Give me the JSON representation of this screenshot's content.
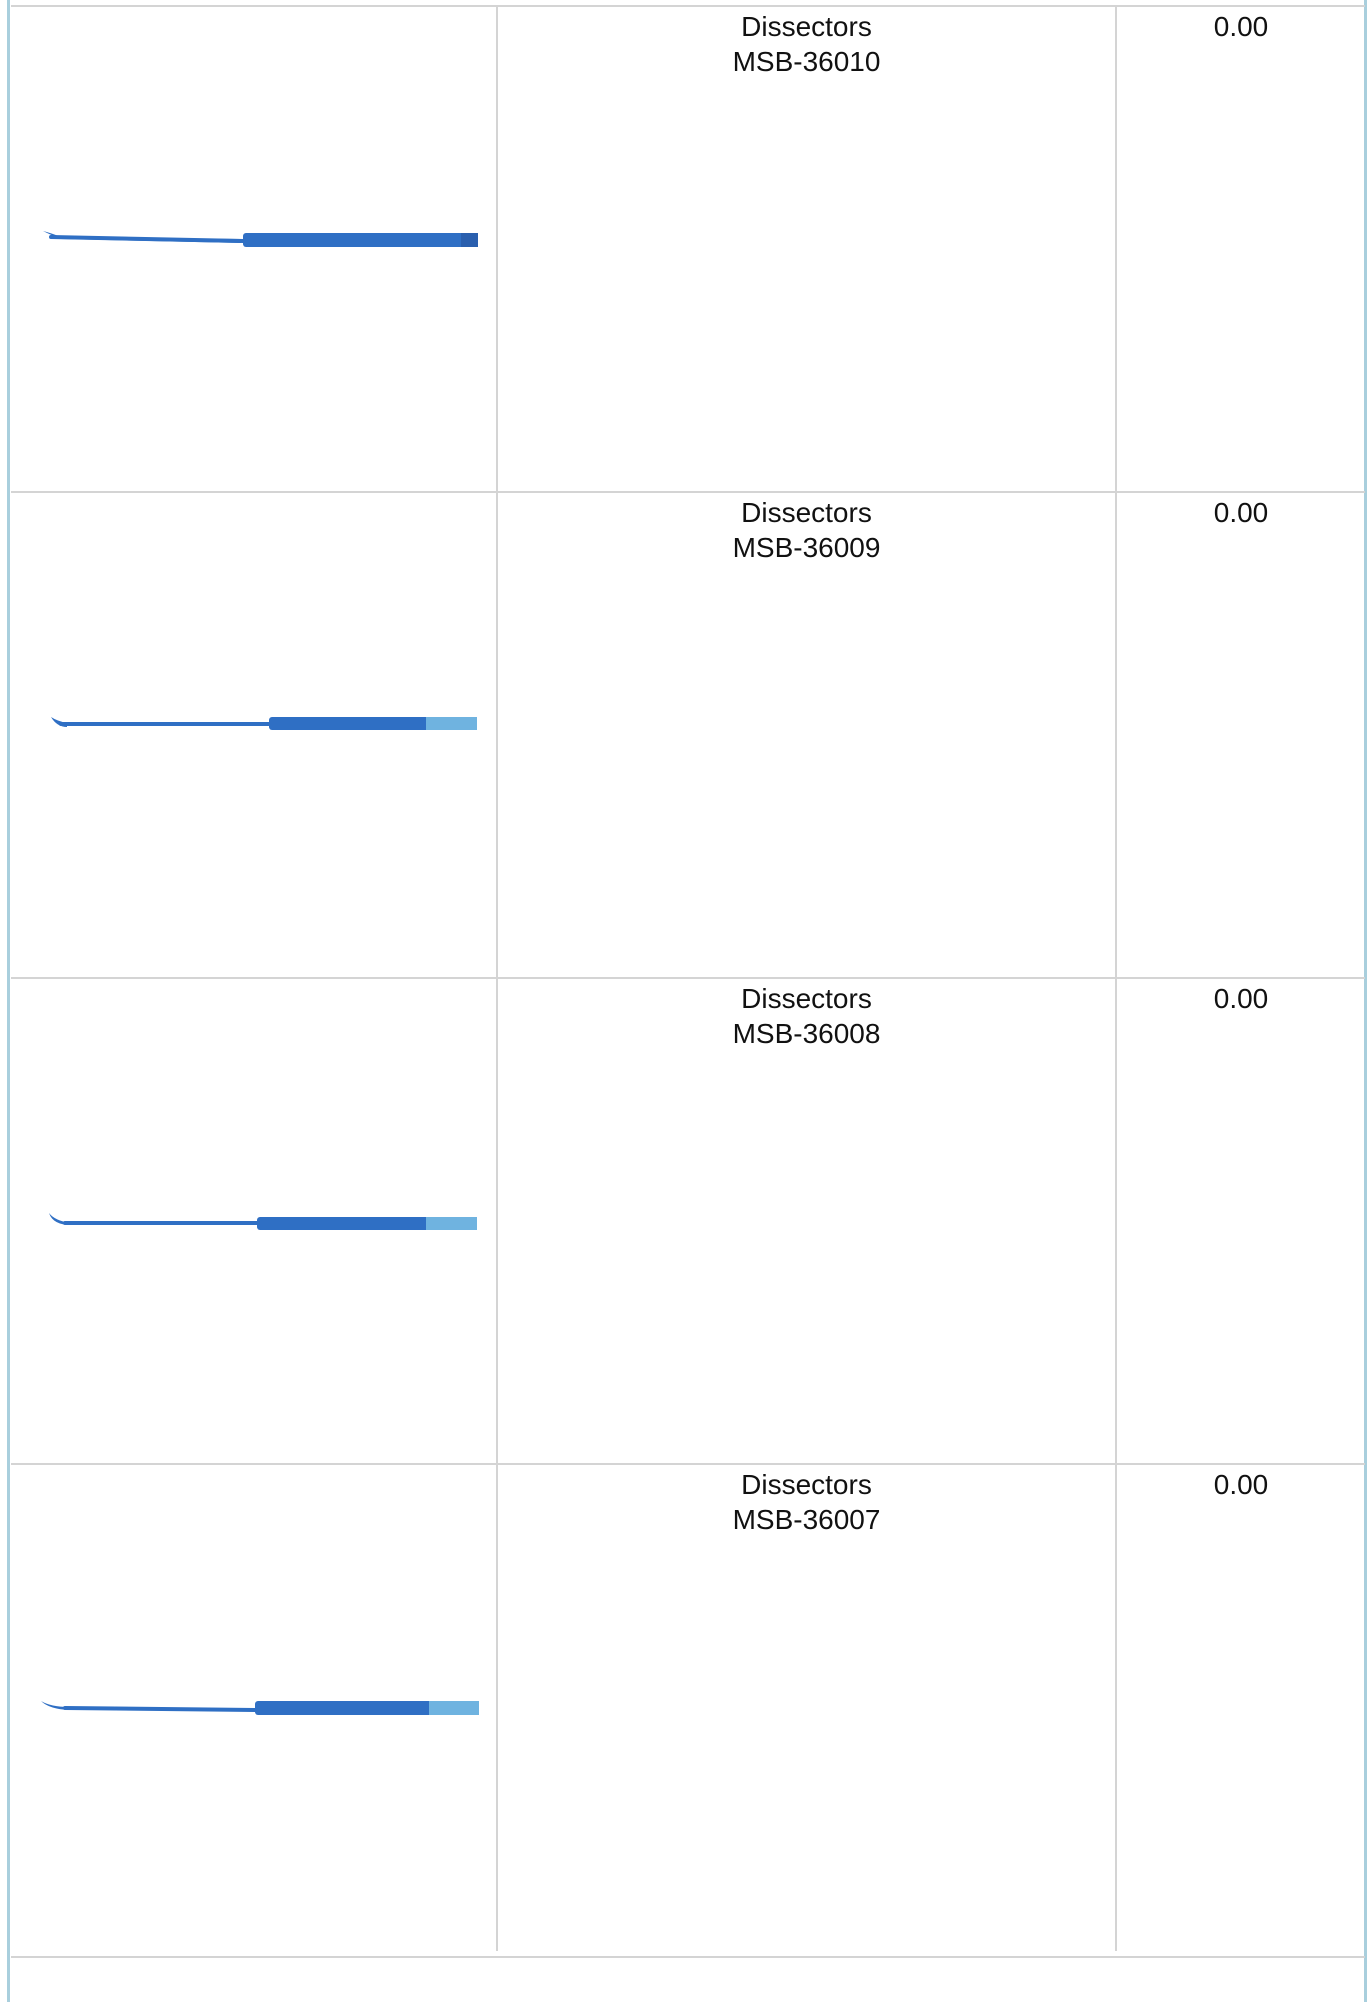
{
  "products": [
    {
      "name": "Dissectors",
      "code": "MSB-36010",
      "price": "0.00",
      "icon": "dissector-instrument-image"
    },
    {
      "name": "Dissectors",
      "code": "MSB-36009",
      "price": "0.00",
      "icon": "dissector-instrument-image"
    },
    {
      "name": "Dissectors",
      "code": "MSB-36008",
      "price": "0.00",
      "icon": "dissector-instrument-image"
    },
    {
      "name": "Dissectors",
      "code": "MSB-36007",
      "price": "0.00",
      "icon": "dissector-instrument-image"
    }
  ],
  "colors": {
    "instrument": "#2f6fc4",
    "instrument_light": "#6fb3e0",
    "border": "#d4d4d4",
    "frame": "#a9cfdd"
  }
}
